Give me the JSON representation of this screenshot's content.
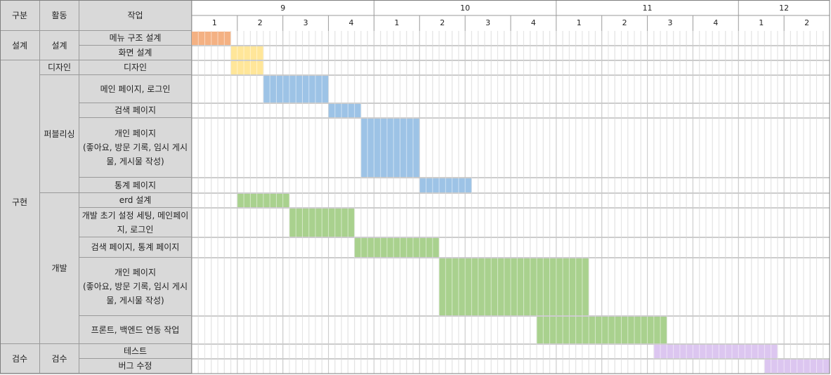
{
  "headers": [
    "구분",
    "활동",
    "작업"
  ],
  "months": [
    {
      "label": 9,
      "weeks": [
        1,
        2,
        3,
        4
      ]
    },
    {
      "label": 10,
      "weeks": [
        1,
        2,
        3,
        4
      ]
    },
    {
      "label": 11,
      "weeks": [
        1,
        2,
        3,
        4
      ]
    },
    {
      "label": 12,
      "weeks": [
        1,
        2
      ]
    }
  ],
  "sections": [
    {
      "name": "설계",
      "activities": [
        {
          "name": "설계",
          "tasks": [
            {
              "name": "메뉴 구조 설계",
              "start": 0,
              "end": 6,
              "color": "#f4b183"
            },
            {
              "name": "화면 설계",
              "start": 6,
              "end": 11,
              "color": "#ffe699"
            }
          ]
        }
      ]
    },
    {
      "name": "구현",
      "activities": [
        {
          "name": "디자인",
          "tasks": [
            {
              "name": "디자인",
              "start": 6,
              "end": 11,
              "color": "#ffe699"
            }
          ]
        },
        {
          "name": "퍼블리싱",
          "tasks": [
            {
              "name": "메인 페이지, 로그인",
              "start": 11,
              "end": 21,
              "color": "#9dc3e6"
            },
            {
              "name": "검색 페이지",
              "start": 21,
              "end": 26,
              "color": "#9dc3e6"
            },
            {
              "name": "개인 페이지\n(좋아요, 방문 기록, 임시 게시물, 게시물 작성)",
              "start": 26,
              "end": 35,
              "color": "#9dc3e6"
            },
            {
              "name": "통계 페이지",
              "start": 35,
              "end": 43,
              "color": "#9dc3e6"
            }
          ]
        },
        {
          "name": "개발",
          "tasks": [
            {
              "name": "erd 설계",
              "start": 7,
              "end": 15,
              "color": "#a9d18e"
            },
            {
              "name": "개발 초기 설정 세팅, 메인페이지, 로그인",
              "start": 15,
              "end": 25,
              "color": "#a9d18e"
            },
            {
              "name": "검색 페이지, 통계 페이지",
              "start": 25,
              "end": 38,
              "color": "#a9d18e"
            },
            {
              "name": "개인 페이지\n(좋아요, 방문 기록, 임시 게시물, 게시물 작성)",
              "start": 38,
              "end": 61,
              "color": "#a9d18e"
            },
            {
              "name": "프론트, 백엔드 연동 작업",
              "start": 53,
              "end": 73,
              "color": "#a9d18e"
            }
          ]
        }
      ]
    },
    {
      "name": "검수",
      "activities": [
        {
          "name": "검수",
          "tasks": [
            {
              "name": "테스트",
              "start": 71,
              "end": 90,
              "color": "#dcc6f0"
            },
            {
              "name": "버그 수정",
              "start": 88,
              "end": 98,
              "color": "#dcc6f0"
            }
          ]
        }
      ]
    }
  ]
}
